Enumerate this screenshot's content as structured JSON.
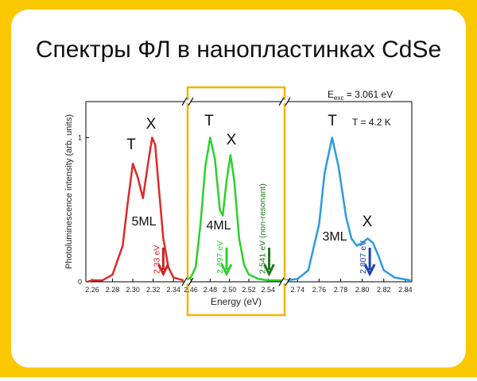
{
  "title": "Спектры ФЛ в нанопластинках CdSe",
  "chart_data": [
    {
      "type": "line",
      "ylabel": "Photoluminescence intensity (arb. units)",
      "x": [
        2.255,
        2.26,
        2.27,
        2.28,
        2.29,
        2.295,
        2.3,
        2.305,
        2.31,
        2.315,
        2.319,
        2.322,
        2.325,
        2.33,
        2.335,
        2.34,
        2.35
      ],
      "values": [
        0.0,
        0.01,
        0.01,
        0.05,
        0.25,
        0.55,
        0.82,
        0.72,
        0.58,
        0.82,
        1.0,
        0.95,
        0.7,
        0.3,
        0.1,
        0.03,
        0.01
      ],
      "color": "#e02828",
      "xlim": [
        2.2537,
        2.354
      ],
      "ylim": [
        0,
        1.25
      ],
      "xticks": [
        2.26,
        2.28,
        {
          "value": 2.3,
          "label": "2.30"
        },
        2.32,
        2.34
      ],
      "yticks": [
        0,
        1
      ],
      "labels": [
        "T",
        "X",
        "5ML"
      ],
      "annotations": [
        {
          "label": "2.33 eV",
          "x": 2.33,
          "color": "#cc2222"
        }
      ]
    },
    {
      "type": "line",
      "xlabel": "Energy (eV)",
      "x": [
        2.457,
        2.46,
        2.465,
        2.47,
        2.475,
        2.48,
        2.485,
        2.49,
        2.493,
        2.497,
        2.501,
        2.505,
        2.51,
        2.515,
        2.52,
        2.53,
        2.54,
        2.556
      ],
      "values": [
        0.02,
        0.03,
        0.1,
        0.4,
        0.8,
        1.0,
        0.85,
        0.5,
        0.46,
        0.7,
        0.88,
        0.7,
        0.3,
        0.12,
        0.05,
        0.02,
        0.01,
        0.01
      ],
      "color": "#2ad12a",
      "xlim": [
        2.4567,
        2.557
      ],
      "ylim": [
        0,
        1.25
      ],
      "xticks": [
        2.46,
        2.48,
        {
          "value": 2.5,
          "label": "2.50"
        },
        2.52,
        2.54
      ],
      "labels": [
        "T",
        "X",
        "4ML"
      ],
      "annotations": [
        {
          "label": "2.497 eV",
          "x": 2.497,
          "color": "#2ad12a"
        },
        {
          "label": "2.541 eV (non-resonant)",
          "x": 2.541,
          "color": "#1a7a1a"
        }
      ]
    },
    {
      "type": "line",
      "x": [
        2.729,
        2.74,
        2.75,
        2.76,
        2.765,
        2.772,
        2.778,
        2.785,
        2.79,
        2.795,
        2.8,
        2.805,
        2.81,
        2.815,
        2.82,
        2.83,
        2.845
      ],
      "values": [
        0.01,
        0.02,
        0.08,
        0.4,
        0.75,
        1.0,
        0.8,
        0.45,
        0.3,
        0.25,
        0.27,
        0.3,
        0.27,
        0.18,
        0.08,
        0.03,
        0.01
      ],
      "color": "#2a9be0",
      "xlim": [
        2.728,
        2.846
      ],
      "ylim": [
        0,
        1.25
      ],
      "xticks": [
        2.74,
        2.76,
        2.78,
        {
          "value": 2.8,
          "label": "2.80"
        },
        2.82,
        2.84
      ],
      "labels": [
        "T",
        "X",
        "3ML"
      ],
      "annotations": [
        {
          "label": "2.807 eV",
          "x": 2.807,
          "color": "#1a3fb0"
        }
      ],
      "notes": {
        "symbol": "E",
        "subscript": "exc",
        "text": " = 3.061 eV",
        "temperature": "T = 4.2 K"
      }
    }
  ]
}
